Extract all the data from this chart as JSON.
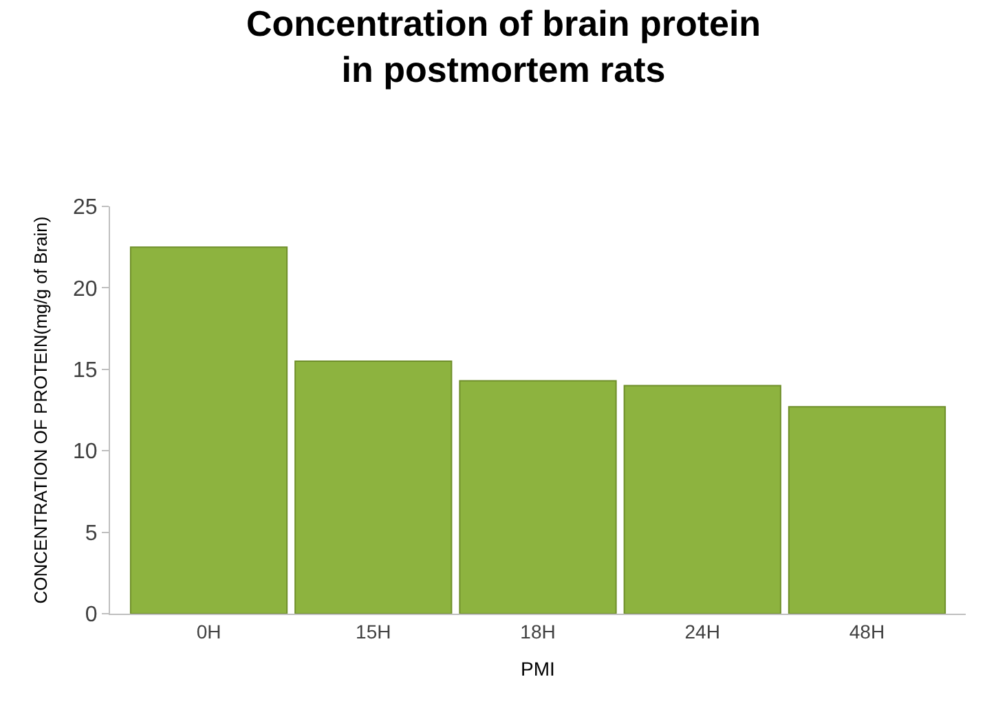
{
  "chart_data": {
    "type": "bar",
    "title": "Concentration of brain protein in postmortem rats",
    "xlabel": "PMI",
    "ylabel": "CONCENTRATION OF PROTEIN(mg/g of Brain)",
    "categories": [
      "0H",
      "15H",
      "18H",
      "24H",
      "48H"
    ],
    "values": [
      22.5,
      15.5,
      14.3,
      14.0,
      12.7
    ],
    "color": "#8db33f",
    "ylim": [
      0,
      25
    ],
    "yticks": [
      0,
      5,
      10,
      15,
      20,
      25
    ],
    "grid": false
  }
}
